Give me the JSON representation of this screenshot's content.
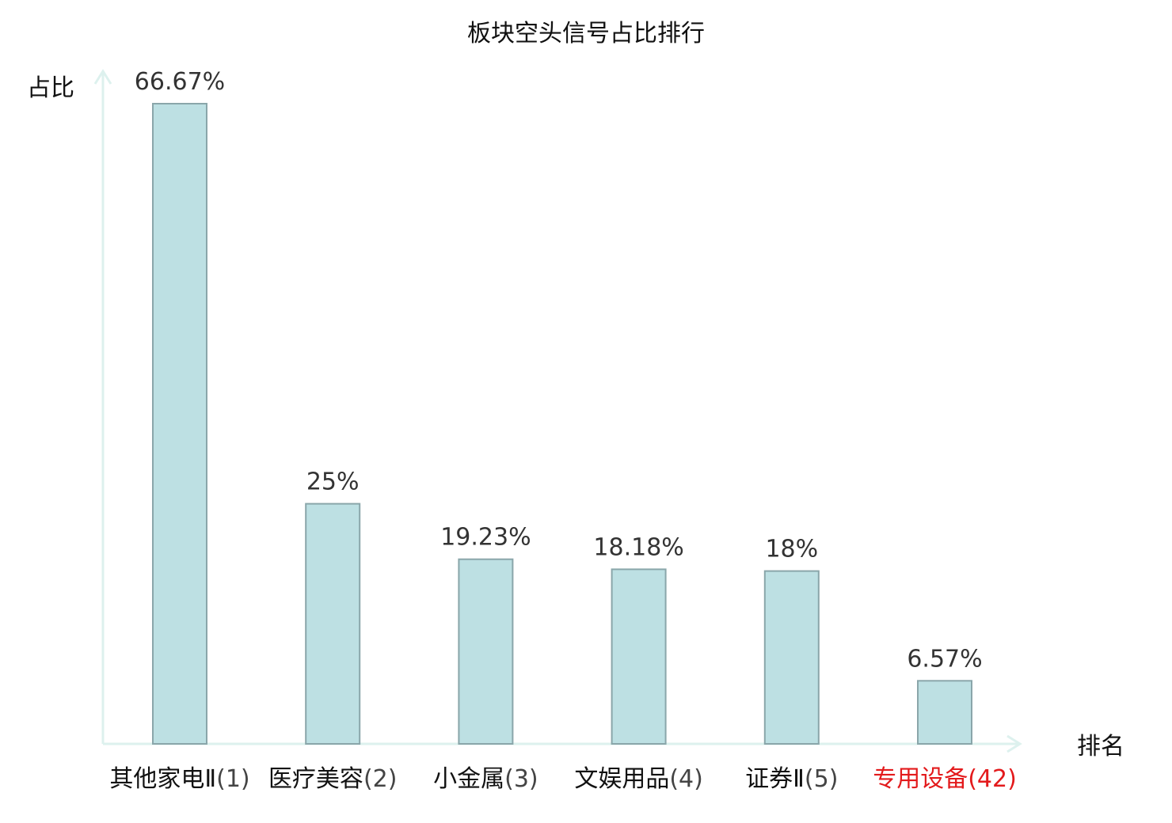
{
  "chart_data": {
    "type": "bar",
    "title": "板块空头信号占比排行",
    "ylabel": "占比",
    "xlabel": "排名",
    "categories": [
      {
        "name": "其他家电Ⅱ",
        "rank": "(1)"
      },
      {
        "name": "医疗美容",
        "rank": "(2)"
      },
      {
        "name": "小金属",
        "rank": "(3)"
      },
      {
        "name": "文娱用品",
        "rank": "(4)"
      },
      {
        "name": "证券Ⅱ",
        "rank": "(5)"
      },
      {
        "name": "专用设备",
        "rank": "(42)"
      }
    ],
    "values": [
      66.67,
      25,
      19.23,
      18.18,
      18,
      6.57
    ],
    "value_labels": [
      "66.67%",
      "25%",
      "19.23%",
      "18.18%",
      "18%",
      "6.57%"
    ],
    "highlight_index": 5,
    "ylim": [
      0,
      66.67
    ],
    "grid": false,
    "legend": "none",
    "colors": {
      "bar_fill": "#bde0e3",
      "bar_stroke": "#8aa6aa",
      "axis": "#ddf1ee",
      "highlight_text": "#e31a1c"
    }
  }
}
